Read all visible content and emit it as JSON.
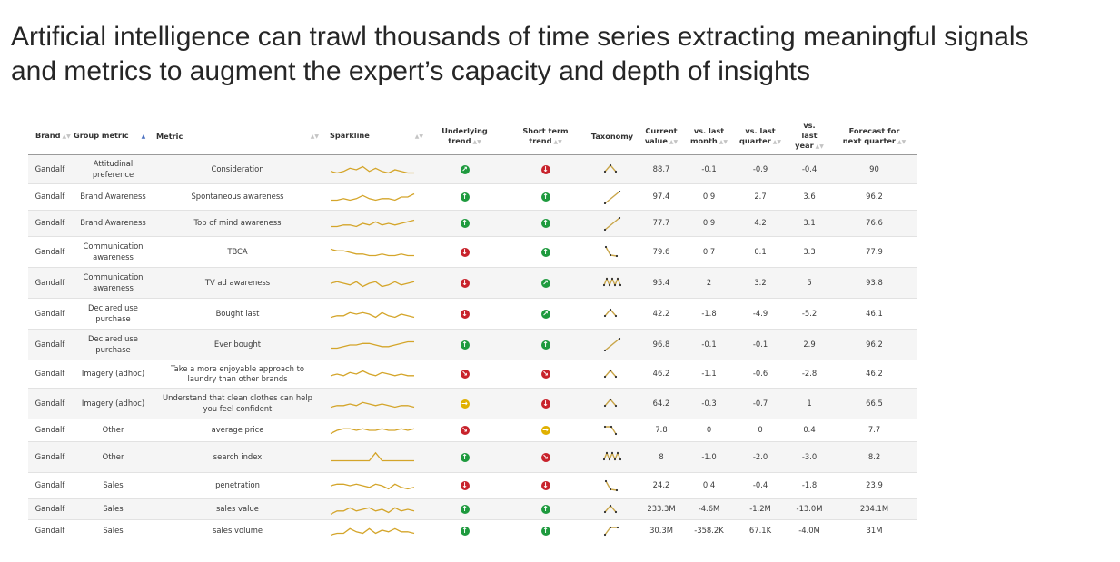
{
  "headline": {
    "line1": "Artificial intelligence can trawl thousands of time series extracting meaningful signals",
    "line2": "and metrics to augment the expert’s capacity and depth of insights"
  },
  "colors": {
    "up": "#1e9a3e",
    "down": "#c8232c",
    "neutral": "#e0b000",
    "spark": "#d4a52a",
    "taxonomy_line": "#c9a64a",
    "taxonomy_dot": "#2e2e2e",
    "sort_active": "#4a70c0"
  },
  "table": {
    "headers": {
      "brand": "Brand",
      "group_metric": "Group metric",
      "metric": "Metric",
      "sparkline": "Sparkline",
      "underlying_trend_1": "Underlying",
      "underlying_trend_2": "trend",
      "short_term_1": "Short term",
      "short_term_2": "trend",
      "taxonomy": "Taxonomy",
      "current_1": "Current",
      "current_2": "value",
      "vs_month_1": "vs. last",
      "vs_month_2": "month",
      "vs_quarter_1": "vs. last",
      "vs_quarter_2": "quarter",
      "vs_year_1": "vs.",
      "vs_year_2": "last",
      "vs_year_3": "year",
      "forecast_1": "Forecast for",
      "forecast_2": "next quarter"
    },
    "rows": [
      {
        "brand": "Gandalf",
        "group": "Attitudinal preference",
        "metric": "Consideration",
        "underlying": "diag-up",
        "short": "down",
        "taxonomy": "peak",
        "current": "88.7",
        "month": "-0.1",
        "quarter": "-0.9",
        "year": "-0.4",
        "forecast": "90",
        "spark": [
          5,
          6,
          5,
          3,
          4,
          2,
          5,
          3,
          5,
          6,
          4,
          5,
          6,
          6
        ]
      },
      {
        "brand": "Gandalf",
        "group": "Brand Awareness",
        "metric": "Spontaneous awareness",
        "underlying": "up",
        "short": "up",
        "taxonomy": "rise",
        "current": "97.4",
        "month": "0.9",
        "quarter": "2.7",
        "year": "3.6",
        "forecast": "96.2",
        "spark": [
          6,
          6,
          5,
          6,
          5,
          3,
          5,
          6,
          5,
          5,
          6,
          4,
          4,
          2
        ]
      },
      {
        "brand": "Gandalf",
        "group": "Brand Awareness",
        "metric": "Top of mind awareness",
        "underlying": "up",
        "short": "up",
        "taxonomy": "rise",
        "current": "77.7",
        "month": "0.9",
        "quarter": "4.2",
        "year": "3.1",
        "forecast": "76.6",
        "spark": [
          6,
          6,
          5,
          5,
          6,
          4,
          5,
          3,
          5,
          4,
          5,
          4,
          3,
          2
        ]
      },
      {
        "brand": "Gandalf",
        "group": "Communication awareness",
        "metric": "TBCA",
        "underlying": "down",
        "short": "up",
        "taxonomy": "drop",
        "current": "79.6",
        "month": "0.7",
        "quarter": "0.1",
        "year": "3.3",
        "forecast": "77.9",
        "spark": [
          2,
          3,
          3,
          4,
          5,
          5,
          6,
          6,
          5,
          6,
          6,
          5,
          6,
          6
        ]
      },
      {
        "brand": "Gandalf",
        "group": "Communication awareness",
        "metric": "TV ad awareness",
        "underlying": "down",
        "short": "diag-up",
        "taxonomy": "zigzag",
        "current": "95.4",
        "month": "2",
        "quarter": "3.2",
        "year": "5",
        "forecast": "93.8",
        "spark": [
          4,
          3,
          4,
          5,
          3,
          6,
          4,
          3,
          6,
          5,
          3,
          5,
          4,
          3
        ]
      },
      {
        "brand": "Gandalf",
        "group": "Declared use purchase",
        "metric": "Bought last",
        "underlying": "down",
        "short": "diag-up",
        "taxonomy": "peak",
        "current": "42.2",
        "month": "-1.8",
        "quarter": "-4.9",
        "year": "-5.2",
        "forecast": "46.1",
        "spark": [
          6,
          5,
          5,
          3,
          4,
          3,
          4,
          6,
          3,
          5,
          6,
          4,
          5,
          6
        ]
      },
      {
        "brand": "Gandalf",
        "group": "Declared use purchase",
        "metric": "Ever bought",
        "underlying": "up",
        "short": "up",
        "taxonomy": "rise",
        "current": "96.8",
        "month": "-0.1",
        "quarter": "-0.1",
        "year": "2.9",
        "forecast": "96.2",
        "spark": [
          6,
          6,
          5,
          4,
          4,
          3,
          3,
          4,
          5,
          5,
          4,
          3,
          2,
          2
        ]
      },
      {
        "brand": "Gandalf",
        "group": "Imagery (adhoc)",
        "metric": "Take a more enjoyable approach to laundry than other brands",
        "underlying": "diag-down",
        "short": "diag-down",
        "taxonomy": "peak",
        "current": "46.2",
        "month": "-1.1",
        "quarter": "-0.6",
        "year": "-2.8",
        "forecast": "46.2",
        "spark": [
          5,
          4,
          5,
          3,
          4,
          2,
          4,
          5,
          3,
          4,
          5,
          4,
          5,
          5
        ]
      },
      {
        "brand": "Gandalf",
        "group": "Imagery (adhoc)",
        "metric": "Understand that clean clothes can help you feel confident",
        "underlying": "flat",
        "short": "down",
        "taxonomy": "peak",
        "current": "64.2",
        "month": "-0.3",
        "quarter": "-0.7",
        "year": "1",
        "forecast": "66.5",
        "spark": [
          6,
          5,
          5,
          4,
          5,
          3,
          4,
          5,
          4,
          5,
          6,
          5,
          5,
          6
        ]
      },
      {
        "brand": "Gandalf",
        "group": "Other",
        "metric": "average price",
        "underlying": "diag-down",
        "short": "flat",
        "taxonomy": "fall",
        "current": "7.8",
        "month": "0",
        "quarter": "0",
        "year": "0.4",
        "forecast": "7.7",
        "spark": [
          6,
          4,
          3,
          3,
          4,
          3,
          4,
          4,
          3,
          4,
          4,
          3,
          4,
          3
        ]
      },
      {
        "brand": "Gandalf",
        "group": "Other",
        "metric": "search index",
        "underlying": "up",
        "short": "diag-down",
        "taxonomy": "zigzag",
        "current": "8",
        "month": "-1.0",
        "quarter": "-2.0",
        "year": "-3.0",
        "forecast": "8.2",
        "spark": [
          6,
          6,
          6,
          6,
          6,
          6,
          6,
          1,
          6,
          6,
          6,
          6,
          6,
          6
        ]
      },
      {
        "brand": "Gandalf",
        "group": "Sales",
        "metric": "penetration",
        "underlying": "down",
        "short": "down",
        "taxonomy": "drop",
        "current": "24.2",
        "month": "0.4",
        "quarter": "-0.4",
        "year": "-1.8",
        "forecast": "23.9",
        "spark": [
          4,
          3,
          3,
          4,
          3,
          4,
          5,
          3,
          4,
          6,
          3,
          5,
          6,
          5
        ]
      },
      {
        "brand": "Gandalf",
        "group": "Sales",
        "metric": "sales value",
        "underlying": "up",
        "short": "up",
        "taxonomy": "peak",
        "current": "233.3M",
        "month": "-4.6M",
        "quarter": "-1.2M",
        "year": "-13.0M",
        "forecast": "234.1M",
        "spark": [
          7,
          5,
          5,
          3,
          5,
          4,
          3,
          5,
          4,
          6,
          3,
          5,
          4,
          5
        ]
      },
      {
        "brand": "Gandalf",
        "group": "Sales",
        "metric": "sales volume",
        "underlying": "up",
        "short": "up",
        "taxonomy": "plateau",
        "current": "30.3M",
        "month": "-358.2K",
        "quarter": "67.1K",
        "year": "-4.0M",
        "forecast": "31M",
        "spark": [
          7,
          6,
          6,
          3,
          5,
          6,
          3,
          6,
          4,
          5,
          3,
          5,
          5,
          6
        ]
      }
    ]
  }
}
